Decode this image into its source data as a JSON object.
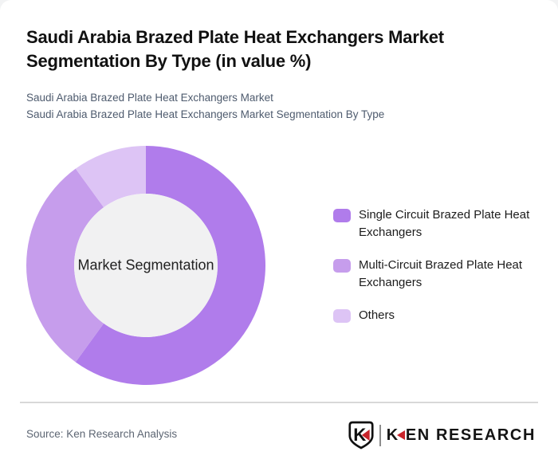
{
  "page": {
    "title": "Saudi Arabia Brazed Plate Heat Exchangers Market Segmentation By Type (in value %)",
    "subtitle_line1": "Saudi Arabia Brazed Plate Heat Exchangers Market",
    "subtitle_line2": "Saudi Arabia Brazed Plate Heat Exchangers Market Segmentation By Type"
  },
  "chart_data": {
    "type": "pie",
    "donut": true,
    "title": "Saudi Arabia Brazed Plate Heat Exchangers Market Segmentation By Type (in value %)",
    "center_label": "Market Segmentation",
    "categories": [
      "Single Circuit Brazed Plate Heat Exchangers",
      "Multi-Circuit Brazed Plate Heat Exchangers",
      "Others"
    ],
    "values": [
      60,
      30,
      10
    ],
    "units": "value %",
    "colors": [
      "#b07ceb",
      "#c69dec",
      "#ddc4f5"
    ],
    "inner_circle_color": "#f1f1f2",
    "start_angle_deg": 0,
    "direction": "clockwise",
    "legend_position": "right"
  },
  "footer": {
    "source": "Source: Ken Research Analysis",
    "logo_badge_letter": "K",
    "logo_word_k": "K",
    "logo_word_rest": "EN RESEARCH",
    "logo_red": "#c8242b"
  }
}
